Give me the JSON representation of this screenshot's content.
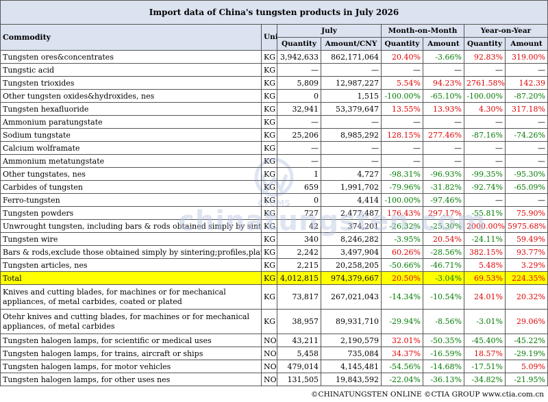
{
  "title": "Import data of China's tungsten products in July 2026",
  "headers": {
    "commodity": "Commodity",
    "unit": "Unit",
    "july": "July",
    "mom": "Month-on-Month",
    "yoy": "Year-on-Year",
    "quantity": "Quantity",
    "amount_cny": "Amount/CNY",
    "amount": "Amount"
  },
  "rows": [
    {
      "name": "Tungsten ores&concentrates",
      "unit": "KG",
      "qty": "3,942,633",
      "amt": "862,171,064",
      "mom_q": "20.40%",
      "mom_a": "-3.66%",
      "yoy_q": "92.83%",
      "yoy_a": "319.00%"
    },
    {
      "name": "Tungstic acid",
      "unit": "KG",
      "qty": "—",
      "amt": "—",
      "mom_q": "—",
      "mom_a": "—",
      "yoy_q": "—",
      "yoy_a": "—"
    },
    {
      "name": "Tungsten trioxides",
      "unit": "KG",
      "qty": "5,809",
      "amt": "12,987,227",
      "mom_q": "5.54%",
      "mom_a": "94.23%",
      "yoy_q": "2761.58%",
      "yoy_a": "142.39"
    },
    {
      "name": "Other tungsten oxides&hydroxides, nes",
      "unit": "KG",
      "qty": "0",
      "amt": "1,515",
      "mom_q": "-100.00%",
      "mom_a": "-65.10%",
      "yoy_q": "-100.00%",
      "yoy_a": "-87.20%"
    },
    {
      "name": "Tungsten hexafluoride",
      "unit": "KG",
      "qty": "32,941",
      "amt": "53,379,647",
      "mom_q": "13.55%",
      "mom_a": "13.93%",
      "yoy_q": "4.30%",
      "yoy_a": "317.18%"
    },
    {
      "name": "Ammonium paratungstate",
      "unit": "KG",
      "qty": "—",
      "amt": "—",
      "mom_q": "—",
      "mom_a": "—",
      "yoy_q": "—",
      "yoy_a": "—"
    },
    {
      "name": "Sodium tungstate",
      "unit": "KG",
      "qty": "25,206",
      "amt": "8,985,292",
      "mom_q": "128.15%",
      "mom_a": "277.46%",
      "yoy_q": "-87.16%",
      "yoy_a": "-74.26%"
    },
    {
      "name": "Calcium wolframate",
      "unit": "KG",
      "qty": "—",
      "amt": "—",
      "mom_q": "—",
      "mom_a": "—",
      "yoy_q": "—",
      "yoy_a": "—"
    },
    {
      "name": "Ammonium metatungstate",
      "unit": "KG",
      "qty": "—",
      "amt": "—",
      "mom_q": "—",
      "mom_a": "—",
      "yoy_q": "—",
      "yoy_a": "—"
    },
    {
      "name": "Other tungstates, nes",
      "unit": "KG",
      "qty": "1",
      "amt": "4,727",
      "mom_q": "-98.31%",
      "mom_a": "-96.93%",
      "yoy_q": "-99.35%",
      "yoy_a": "-95.30%"
    },
    {
      "name": "Carbides of tungsten",
      "unit": "KG",
      "qty": "659",
      "amt": "1,991,702",
      "mom_q": "-79.96%",
      "mom_a": "-31.82%",
      "yoy_q": "-92.74%",
      "yoy_a": "-65.09%"
    },
    {
      "name": "Ferro-tungsten",
      "unit": "KG",
      "qty": "0",
      "amt": "4,414",
      "mom_q": "-100.00%",
      "mom_a": "-97.46%",
      "yoy_q": "—",
      "yoy_a": "—"
    },
    {
      "name": "Tungsten powders",
      "unit": "KG",
      "qty": "727",
      "amt": "2,477,487",
      "mom_q": "176.43%",
      "mom_a": "297.17%",
      "yoy_q": "-55.81%",
      "yoy_a": "75.90%"
    },
    {
      "name": "Unwrought tungsten, including bars & rods obtained simply by sintering",
      "unit": "KG",
      "qty": "42",
      "amt": "374,201",
      "mom_q": "-26.32%",
      "mom_a": "-25.30%",
      "yoy_q": "2000.00%",
      "yoy_a": "5975.68%"
    },
    {
      "name": "Tungsten wire",
      "unit": "KG",
      "qty": "340",
      "amt": "8,246,282",
      "mom_q": "-3.95%",
      "mom_a": "20.54%",
      "yoy_q": "-24.11%",
      "yoy_a": "59.49%"
    },
    {
      "name": "Bars & rods,exclude those obtained simply by sintering;profiles,plates,etc",
      "unit": "KG",
      "qty": "2,242",
      "amt": "3,497,904",
      "mom_q": "60.26%",
      "mom_a": "-28.56%",
      "yoy_q": "382.15%",
      "yoy_a": "93.77%"
    },
    {
      "name": "Tungsten articles, nes",
      "unit": "KG",
      "qty": "2,215",
      "amt": "20,258,205",
      "mom_q": "-50.66%",
      "mom_a": "-46.71%",
      "yoy_q": "5.48%",
      "yoy_a": "3.29%"
    },
    {
      "name": "Total",
      "unit": "KG",
      "qty": "4,012,815",
      "amt": "974,379,667",
      "mom_q": "20.50%",
      "mom_a": "-3.04%",
      "yoy_q": "69.53%",
      "yoy_a": "224.35%",
      "total": true
    },
    {
      "name": "Knives and cutting blades, for machines or for mechanical appliances, of metal carbides, coated or plated",
      "unit": "KG",
      "qty": "73,817",
      "amt": "267,021,043",
      "mom_q": "-14.34%",
      "mom_a": "-10.54%",
      "yoy_q": "24.01%",
      "yoy_a": "20.32%",
      "tall": true
    },
    {
      "name": "Otehr knives and cutting blades, for machines or for mechanical appliances, of metal carbides",
      "unit": "KG",
      "qty": "38,957",
      "amt": "89,931,710",
      "mom_q": "-29.94%",
      "mom_a": "-8.56%",
      "yoy_q": "-3.01%",
      "yoy_a": "29.06%",
      "tall": true
    },
    {
      "name": "Tungsten halogen lamps, for scientific or medical uses",
      "unit": "NOS",
      "qty": "43,211",
      "amt": "2,190,579",
      "mom_q": "32.01%",
      "mom_a": "-50.35%",
      "yoy_q": "-45.40%",
      "yoy_a": "-45.22%"
    },
    {
      "name": "Tungsten halogen lamps, for trains, aircraft or ships",
      "unit": "NOS",
      "qty": "5,458",
      "amt": "735,084",
      "mom_q": "34.37%",
      "mom_a": "-16.59%",
      "yoy_q": "18.57%",
      "yoy_a": "-29.19%"
    },
    {
      "name": "Tungsten halogen lamps, for motor vehicles",
      "unit": "NOS",
      "qty": "479,014",
      "amt": "4,145,481",
      "mom_q": "-54.56%",
      "mom_a": "-14.68%",
      "yoy_q": "-17.51%",
      "yoy_a": "5.09%"
    },
    {
      "name": "Tungsten halogen lamps, for other uses nes",
      "unit": "NOS",
      "qty": "131,505",
      "amt": "19,843,592",
      "mom_q": "-22.04%",
      "mom_a": "-36.13%",
      "yoy_q": "-34.82%",
      "yoy_a": "-21.95%"
    }
  ],
  "footer": "©CHINATUNGSTEN ONLINE  ©CTIA GROUP  www.ctia.com.cn",
  "watermark": {
    "logo_text": "CTOMS",
    "text": "chinatungsten.com"
  },
  "colors": {
    "header_bg": "#dbe3f0",
    "total_bg": "#ffff00",
    "positive": "#e00000",
    "negative": "#007a00"
  }
}
